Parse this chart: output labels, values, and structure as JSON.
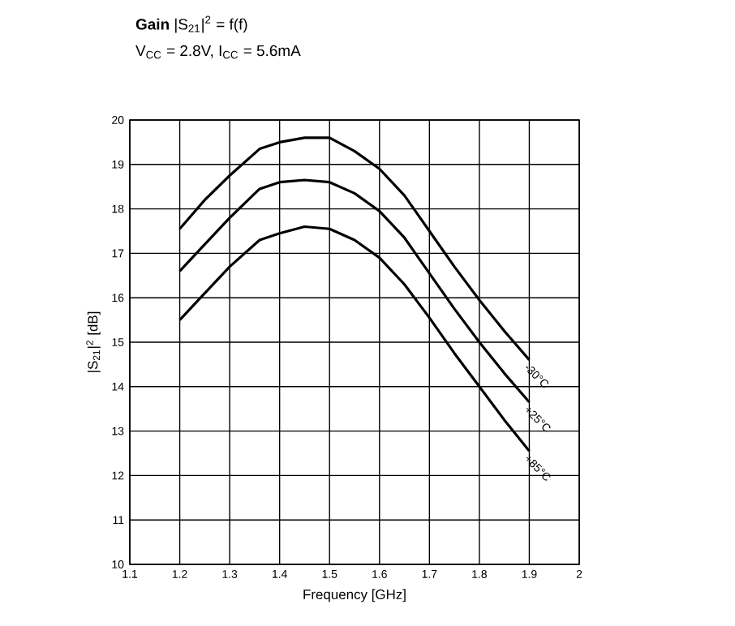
{
  "chart_data": {
    "type": "line",
    "title": "**Gain** |S$_{21}$|$^{2}$ = f(f)",
    "subtitle": "V$_{CC}$ = 2.8V, I$_{CC}$ = 5.6mA",
    "xlabel": "Frequency [GHz]",
    "ylabel": "|S$_{21}$|$^{2}$ [dB]",
    "xlim": [
      1.1,
      2
    ],
    "ylim": [
      10,
      20
    ],
    "xticks": [
      1.1,
      1.2,
      1.3,
      1.4,
      1.5,
      1.6,
      1.7,
      1.8,
      1.9,
      2
    ],
    "yticks": [
      10,
      11,
      12,
      13,
      14,
      15,
      16,
      17,
      18,
      19,
      20
    ],
    "grid": true,
    "legend": false,
    "x": [
      1.2,
      1.25,
      1.3,
      1.36,
      1.4,
      1.45,
      1.5,
      1.55,
      1.6,
      1.65,
      1.7,
      1.75,
      1.8,
      1.85,
      1.9
    ],
    "series": [
      {
        "name": "-30°C",
        "color": "#000000",
        "values": [
          17.55,
          18.2,
          18.75,
          19.35,
          19.5,
          19.6,
          19.6,
          19.3,
          18.9,
          18.3,
          17.5,
          16.7,
          15.95,
          15.25,
          14.6
        ]
      },
      {
        "name": "+25°C",
        "color": "#000000",
        "values": [
          16.6,
          17.2,
          17.8,
          18.45,
          18.6,
          18.65,
          18.6,
          18.35,
          17.95,
          17.35,
          16.55,
          15.75,
          15.0,
          14.3,
          13.65
        ]
      },
      {
        "name": "+85°C",
        "color": "#000000",
        "values": [
          15.5,
          16.1,
          16.7,
          17.3,
          17.45,
          17.6,
          17.55,
          17.3,
          16.9,
          16.3,
          15.55,
          14.75,
          14.0,
          13.25,
          12.55
        ]
      }
    ]
  }
}
